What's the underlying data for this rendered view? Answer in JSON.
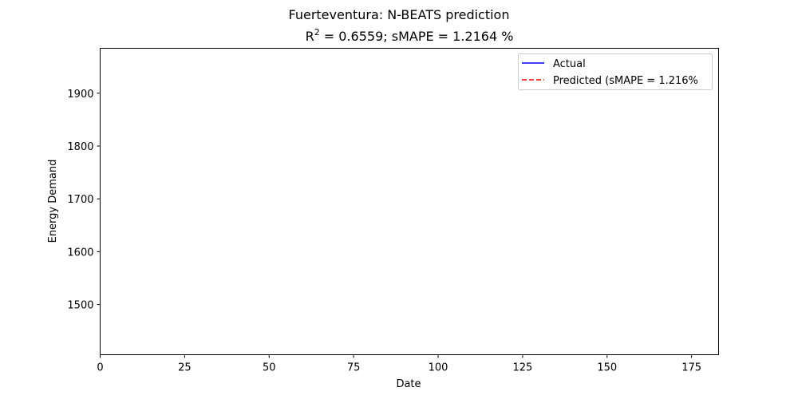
{
  "chart_data": {
    "type": "line",
    "title": "Fuerteventura: N-BEATS prediction",
    "subtitle": {
      "r2_symbol": "R",
      "r2_exponent": "2",
      "rest": " = 0.6559; sMAPE = 1.2164 %"
    },
    "xlabel": "Date",
    "ylabel": "Energy Demand",
    "xlim": [
      0,
      183
    ],
    "ylim": [
      1405,
      1985
    ],
    "x_ticks": [
      0,
      25,
      50,
      75,
      100,
      125,
      150,
      175
    ],
    "y_ticks": [
      1500,
      1600,
      1700,
      1800,
      1900
    ],
    "legend_position": "top-right",
    "grid": false,
    "series": [
      {
        "name": "Actual",
        "color": "#0000ff",
        "line_style": "solid",
        "x": [],
        "y": []
      },
      {
        "name": "Predicted (sMAPE = 1.216%",
        "color": "#ff0000",
        "line_style": "dashed",
        "x": [],
        "y": []
      }
    ]
  }
}
